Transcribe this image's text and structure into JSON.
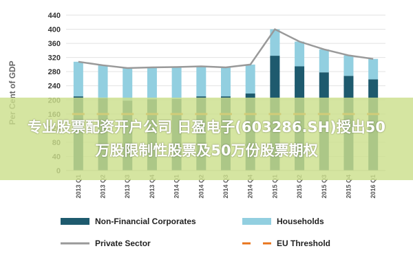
{
  "chart_data": {
    "type": "bar",
    "ylabel": "Per Cent of GDP",
    "ylim": [
      0,
      440
    ],
    "yticks": [
      0,
      40,
      80,
      120,
      160,
      200,
      240,
      280,
      320,
      360,
      400,
      440
    ],
    "categories": [
      "2013 Q1",
      "2013 Q2",
      "2013 Q3",
      "2013 Q4",
      "2014 Q1",
      "2014 Q2",
      "2014 Q3",
      "2014 Q4",
      "2015 Q1",
      "2015 Q2",
      "2015 Q3",
      "2015 Q4",
      "2016 Q1"
    ],
    "series": [
      {
        "name": "Non-Financial Corporates",
        "kind": "bar-stacked",
        "color": "#1e5a6e",
        "values": [
          210,
          205,
          198,
          202,
          203,
          210,
          210,
          218,
          325,
          295,
          278,
          268,
          258
        ]
      },
      {
        "name": "Households",
        "kind": "bar-stacked",
        "color": "#92cfe0",
        "values": [
          98,
          93,
          92,
          90,
          90,
          85,
          82,
          82,
          75,
          70,
          65,
          58,
          58
        ]
      },
      {
        "name": "Private Sector",
        "kind": "line",
        "color": "#999999",
        "values": [
          308,
          298,
          290,
          292,
          293,
          295,
          292,
          300,
          400,
          365,
          343,
          326,
          316
        ]
      },
      {
        "name": "EU Threshold",
        "kind": "dashed-line",
        "color": "#e8741c",
        "values": [
          160,
          160,
          160,
          160,
          160,
          160,
          160,
          160,
          160,
          160,
          160,
          160,
          160
        ]
      }
    ],
    "grid": true,
    "legend_position": "bottom"
  },
  "banner": {
    "text": "专业股票配资开户公司 日盈电子(603286.SH)授出50万股限制性股票及50万份股票期权"
  }
}
